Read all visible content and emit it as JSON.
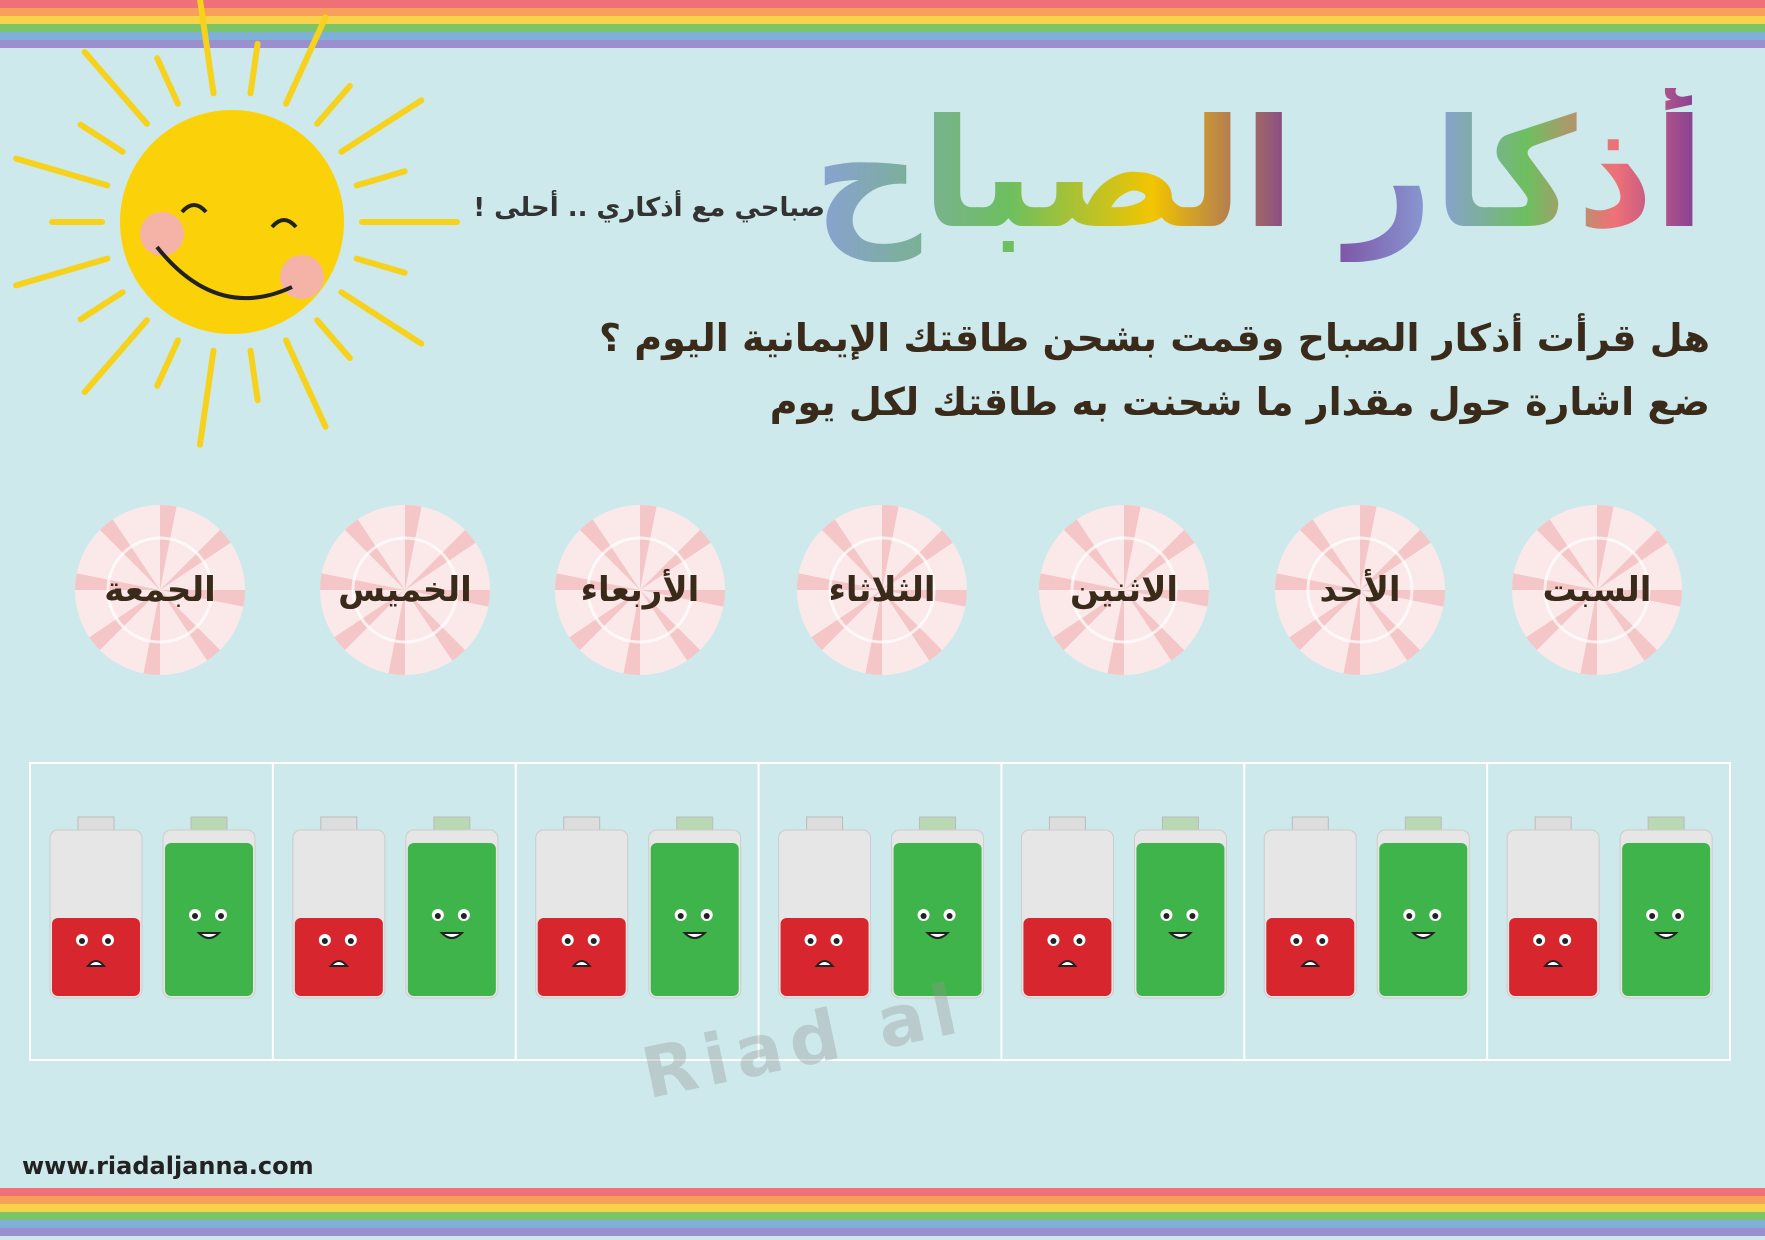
{
  "header": {
    "title": "أذكار الصباح",
    "subtitle": "صباحي مع أذكاري .. أحلى !"
  },
  "instructions": [
    "هل قرأت أذكار الصباح وقمت بشحن طاقتك الإيمانية اليوم ؟",
    "ضع اشارة حول مقدار ما شحنت به طاقتك لكل يوم"
  ],
  "days": [
    "السبت",
    "الأحد",
    "الاثنين",
    "الثلاثاء",
    "الأربعاء",
    "الخميس",
    "الجمعة"
  ],
  "watermark": "Riad al",
  "footer": {
    "website": "www.riadaljanna.com"
  }
}
